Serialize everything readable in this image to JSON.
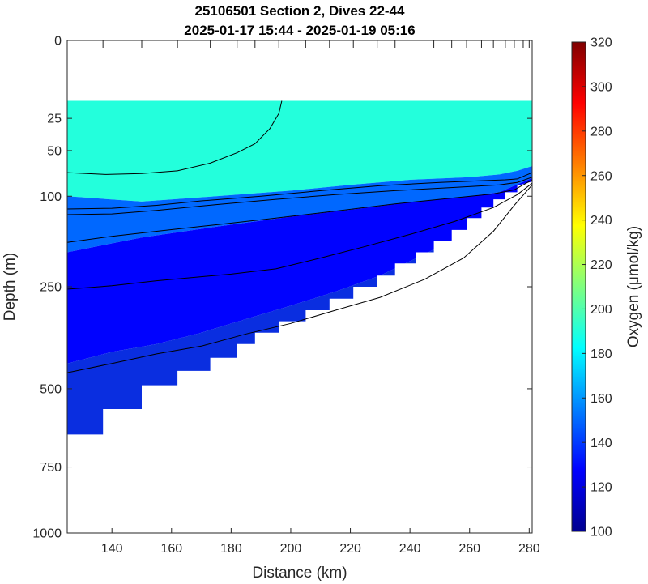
{
  "chart_data": {
    "type": "contour",
    "title": "25106501 Section 2, Dives 22-44",
    "subtitle": "2025-01-17 15:44 - 2025-01-19 05:16",
    "xlabel": "Distance (km)",
    "ylabel": "Depth (m)",
    "colorbar_label": "Oxygen (μmol/kg)",
    "xlim": [
      125,
      281
    ],
    "ylim": [
      0,
      1000
    ],
    "y_scale": "sqrt",
    "y_reversed": true,
    "x_ticks": [
      140,
      160,
      180,
      200,
      220,
      240,
      260,
      280
    ],
    "y_ticks": [
      0,
      25,
      50,
      100,
      250,
      500,
      750,
      1000
    ],
    "colorbar_range": [
      100,
      320
    ],
    "colorbar_ticks": [
      100,
      120,
      140,
      160,
      180,
      200,
      220,
      240,
      260,
      280,
      300,
      320
    ],
    "colormap": "jet",
    "colors": {
      "surface_layer": "#3ff3c6",
      "transition": "#14b6f0",
      "deep": "#1a4cf0",
      "deepest": "#0a2ee0"
    },
    "dive_markers_km": [
      137,
      150,
      162,
      173,
      182,
      188,
      196,
      205,
      213,
      221,
      229,
      235,
      242,
      248,
      254,
      259,
      264,
      268,
      272,
      275,
      278,
      280
    ],
    "layers": [
      {
        "value": 190,
        "top": [
          [
            125,
            15
          ],
          [
            281,
            15
          ]
        ],
        "bottom": [
          [
            125,
            100
          ],
          [
            150,
            107
          ],
          [
            175,
            100
          ],
          [
            200,
            93
          ],
          [
            220,
            86
          ],
          [
            240,
            80
          ],
          [
            260,
            77
          ],
          [
            270,
            74
          ],
          [
            276,
            70
          ],
          [
            281,
            65
          ]
        ]
      },
      {
        "value": 150,
        "top": [
          [
            125,
            100
          ],
          [
            150,
            107
          ],
          [
            175,
            100
          ],
          [
            200,
            93
          ],
          [
            220,
            86
          ],
          [
            240,
            80
          ],
          [
            260,
            77
          ],
          [
            270,
            74
          ],
          [
            276,
            70
          ],
          [
            281,
            65
          ]
        ],
        "bottom": [
          [
            125,
            185
          ],
          [
            150,
            160
          ],
          [
            175,
            143
          ],
          [
            200,
            128
          ],
          [
            220,
            118
          ],
          [
            240,
            108
          ],
          [
            260,
            100
          ],
          [
            270,
            95
          ],
          [
            281,
            78
          ]
        ]
      },
      {
        "value": 128,
        "top": [
          [
            125,
            185
          ],
          [
            150,
            160
          ],
          [
            175,
            143
          ],
          [
            200,
            128
          ],
          [
            220,
            118
          ],
          [
            240,
            108
          ],
          [
            260,
            100
          ],
          [
            270,
            95
          ],
          [
            281,
            78
          ]
        ],
        "bottom": [
          [
            125,
            430
          ],
          [
            140,
            400
          ],
          [
            155,
            380
          ],
          [
            170,
            352
          ],
          [
            185,
            320
          ],
          [
            200,
            290
          ],
          [
            215,
            260
          ],
          [
            230,
            228
          ],
          [
            245,
            188
          ],
          [
            260,
            150
          ],
          [
            270,
            120
          ],
          [
            281,
            82
          ]
        ]
      }
    ],
    "data_mask_bottom": [
      [
        125,
        640
      ],
      [
        137,
        640
      ],
      [
        137,
        560
      ],
      [
        150,
        560
      ],
      [
        150,
        490
      ],
      [
        162,
        490
      ],
      [
        162,
        450
      ],
      [
        173,
        450
      ],
      [
        173,
        415
      ],
      [
        182,
        415
      ],
      [
        182,
        380
      ],
      [
        188,
        380
      ],
      [
        188,
        352
      ],
      [
        196,
        352
      ],
      [
        196,
        325
      ],
      [
        205,
        325
      ],
      [
        205,
        300
      ],
      [
        213,
        300
      ],
      [
        213,
        275
      ],
      [
        221,
        275
      ],
      [
        221,
        250
      ],
      [
        229,
        250
      ],
      [
        229,
        228
      ],
      [
        235,
        228
      ],
      [
        235,
        205
      ],
      [
        242,
        205
      ],
      [
        242,
        185
      ],
      [
        248,
        185
      ],
      [
        248,
        165
      ],
      [
        254,
        165
      ],
      [
        254,
        148
      ],
      [
        259,
        148
      ],
      [
        259,
        130
      ],
      [
        264,
        130
      ],
      [
        264,
        115
      ],
      [
        268,
        115
      ],
      [
        268,
        104
      ],
      [
        272,
        104
      ],
      [
        272,
        95
      ],
      [
        276,
        95
      ],
      [
        276,
        87
      ],
      [
        281,
        82
      ]
    ],
    "contours": [
      [
        [
          125,
          72
        ],
        [
          138,
          74
        ],
        [
          150,
          73
        ],
        [
          162,
          70
        ],
        [
          173,
          62
        ],
        [
          182,
          52
        ],
        [
          188,
          44
        ],
        [
          193,
          32
        ],
        [
          196,
          22
        ],
        [
          197,
          15
        ]
      ],
      [
        [
          125,
          117
        ],
        [
          140,
          116
        ],
        [
          155,
          112
        ],
        [
          170,
          106
        ],
        [
          190,
          100
        ],
        [
          210,
          93
        ],
        [
          230,
          87
        ],
        [
          250,
          83
        ],
        [
          265,
          81
        ],
        [
          272,
          80
        ],
        [
          276,
          79
        ],
        [
          281,
          72
        ]
      ],
      [
        [
          125,
          125
        ],
        [
          140,
          124
        ],
        [
          155,
          119
        ],
        [
          175,
          111
        ],
        [
          195,
          104
        ],
        [
          215,
          98
        ],
        [
          235,
          93
        ],
        [
          255,
          89
        ],
        [
          270,
          86
        ],
        [
          276,
          83
        ],
        [
          281,
          77
        ]
      ],
      [
        [
          125,
          168
        ],
        [
          140,
          158
        ],
        [
          155,
          150
        ],
        [
          175,
          140
        ],
        [
          195,
          130
        ],
        [
          215,
          120
        ],
        [
          235,
          110
        ],
        [
          255,
          102
        ],
        [
          268,
          97
        ],
        [
          275,
          92
        ],
        [
          281,
          80
        ]
      ],
      [
        [
          125,
          255
        ],
        [
          140,
          248
        ],
        [
          155,
          238
        ],
        [
          170,
          230
        ],
        [
          180,
          225
        ],
        [
          195,
          215
        ],
        [
          210,
          195
        ],
        [
          225,
          175
        ],
        [
          240,
          155
        ],
        [
          255,
          135
        ],
        [
          268,
          115
        ],
        [
          276,
          98
        ],
        [
          281,
          84
        ]
      ],
      [
        [
          125,
          455
        ],
        [
          140,
          430
        ],
        [
          155,
          405
        ],
        [
          170,
          385
        ],
        [
          185,
          355
        ],
        [
          200,
          330
        ],
        [
          215,
          300
        ],
        [
          230,
          272
        ],
        [
          245,
          235
        ],
        [
          258,
          195
        ],
        [
          268,
          150
        ],
        [
          275,
          112
        ],
        [
          281,
          86
        ]
      ]
    ]
  }
}
